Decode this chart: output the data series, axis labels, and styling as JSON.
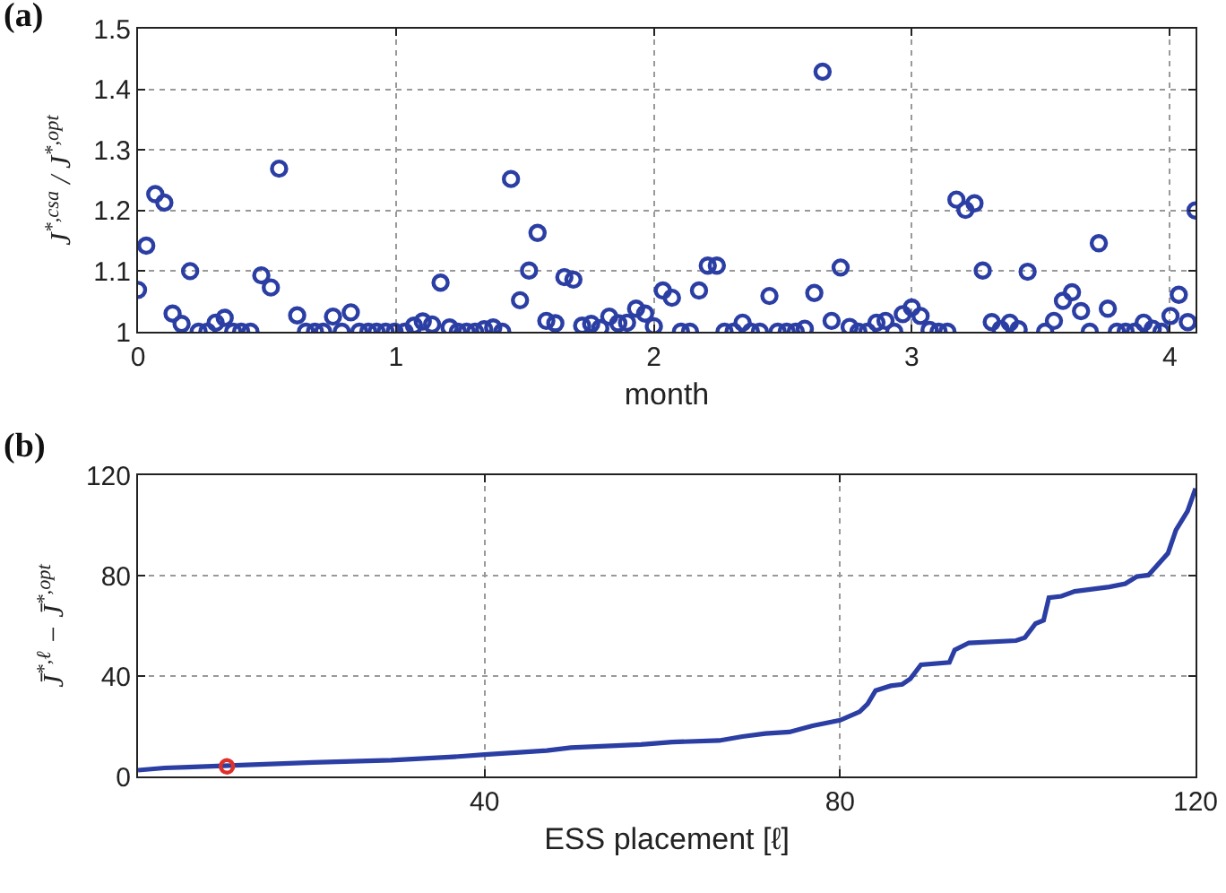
{
  "chart_data": [
    {
      "type": "scatter",
      "title": "(a)",
      "xlabel": "month",
      "ylabel": "J$^{*,csa}$ / J$^{*,opt}$",
      "marker": "circle",
      "grid": true,
      "xlim": [
        0,
        4.1
      ],
      "ylim": [
        1,
        1.5
      ],
      "xticks": [
        0,
        1,
        2,
        3,
        4
      ],
      "yticks": [
        1,
        1.1,
        1.2,
        1.3,
        1.4,
        1.5
      ],
      "series": [
        {
          "color": "#2b3ea3",
          "x": [
            0,
            0.032,
            0.067,
            0.102,
            0.134,
            0.169,
            0.202,
            0.235,
            0.269,
            0.301,
            0.336,
            0.369,
            0.4,
            0.436,
            0.478,
            0.515,
            0.547,
            0.617,
            0.651,
            0.686,
            0.718,
            0.756,
            0.79,
            0.825,
            0.858,
            0.893,
            0.925,
            0.96,
            0.995,
            1.034,
            1.07,
            1.104,
            1.14,
            1.173,
            1.208,
            1.24,
            1.274,
            1.307,
            1.342,
            1.377,
            1.412,
            1.446,
            1.481,
            1.516,
            1.549,
            1.583,
            1.618,
            1.653,
            1.688,
            1.722,
            1.757,
            1.792,
            1.827,
            1.862,
            1.896,
            1.931,
            1.966,
            2.0,
            2.035,
            2.07,
            2.105,
            2.14,
            2.175,
            2.209,
            2.244,
            2.274,
            2.309,
            2.344,
            2.376,
            2.411,
            2.448,
            2.48,
            2.515,
            2.55,
            2.585,
            2.622,
            2.654,
            2.689,
            2.724,
            2.759,
            2.793,
            2.828,
            2.863,
            2.898,
            2.932,
            2.965,
            3.0,
            3.034,
            3.069,
            3.104,
            3.138,
            3.173,
            3.208,
            3.243,
            3.275,
            3.31,
            3.345,
            3.38,
            3.414,
            3.449,
            3.517,
            3.551,
            3.586,
            3.621,
            3.656,
            3.69,
            3.725,
            3.76,
            3.795,
            3.829,
            3.864,
            3.899,
            3.934,
            3.968,
            4.003,
            4.035,
            4.07,
            4.1
          ],
          "values": [
            1.069,
            1.142,
            1.227,
            1.213,
            1.03,
            1.013,
            1.1,
            1.0,
            1.0,
            1.015,
            1.023,
            1.0,
            1.0,
            1.0,
            1.093,
            1.073,
            1.269,
            1.027,
            1.0,
            1.0,
            1.0,
            1.025,
            1.0,
            1.032,
            1.0,
            1.0,
            1.0,
            1.0,
            1.0,
            1.0,
            1.01,
            1.017,
            1.012,
            1.081,
            1.007,
            1.0,
            1.0,
            1.0,
            1.004,
            1.007,
            1.0,
            1.252,
            1.052,
            1.101,
            1.163,
            1.018,
            1.014,
            1.09,
            1.086,
            1.01,
            1.013,
            1.006,
            1.025,
            1.014,
            1.015,
            1.038,
            1.03,
            1.009,
            1.068,
            1.056,
            1.0,
            1.0,
            1.068,
            1.109,
            1.109,
            1.0,
            1.0,
            1.015,
            1.0,
            1.0,
            1.059,
            1.0,
            1.0,
            1.0,
            1.005,
            1.064,
            1.429,
            1.018,
            1.106,
            1.008,
            1.0,
            1.0,
            1.015,
            1.018,
            1.0,
            1.029,
            1.04,
            1.026,
            1.003,
            1.0,
            1.0,
            1.218,
            1.201,
            1.212,
            1.101,
            1.016,
            1.004,
            1.015,
            1.004,
            1.099,
            1.0,
            1.018,
            1.051,
            1.065,
            1.034,
            1.0,
            1.146,
            1.038,
            1.0,
            1.0,
            1.0,
            1.015,
            1.005,
            1.0,
            1.026,
            1.061,
            1.016,
            1.2
          ]
        }
      ]
    },
    {
      "type": "line",
      "title": "(b)",
      "xlabel": "ESS placement [ℓ]",
      "ylabel": "J̄$^{*,ℓ}$ − J̄$^{*,opt}$",
      "grid": true,
      "xlim": [
        1,
        120
      ],
      "ylim": [
        0,
        120
      ],
      "xticks": [
        40,
        80,
        120
      ],
      "yticks": [
        0,
        40,
        80,
        120
      ],
      "series": [
        {
          "color": "#2b3ea3",
          "x": [
            1,
            4,
            6.6,
            11.9,
            20.7,
            29.5,
            36.5,
            40,
            47,
            49.7,
            57.6,
            61.1,
            66.4,
            69,
            71.6,
            74.3,
            76.9,
            80,
            82.2,
            83.1,
            84,
            85.7,
            87,
            87.9,
            89.1,
            92.3,
            92.9,
            94.5,
            99.8,
            100.8,
            102,
            102.9,
            103.5,
            104.9,
            106.4,
            110.3,
            112.1,
            113.4,
            114.7,
            116.9,
            117.8,
            119.1,
            120
          ],
          "values": [
            2.5,
            3.4,
            3.7,
            4.4,
            5.6,
            6.5,
            7.8,
            8.7,
            10.3,
            11.5,
            12.7,
            13.7,
            14.3,
            15.9,
            17.1,
            17.7,
            20.2,
            22.4,
            25.8,
            28.9,
            34.2,
            36.1,
            36.7,
            38.9,
            44.5,
            45.4,
            50.4,
            53.2,
            54.1,
            55.3,
            60.9,
            62.2,
            71.2,
            71.8,
            73.7,
            75.5,
            76.8,
            79.6,
            80.2,
            88.9,
            98.2,
            105.7,
            114.7
          ]
        },
        {
          "type": "scatter",
          "marker": "circle",
          "color": "#e0302a",
          "x": [
            11
          ],
          "values": [
            4
          ]
        }
      ]
    }
  ]
}
